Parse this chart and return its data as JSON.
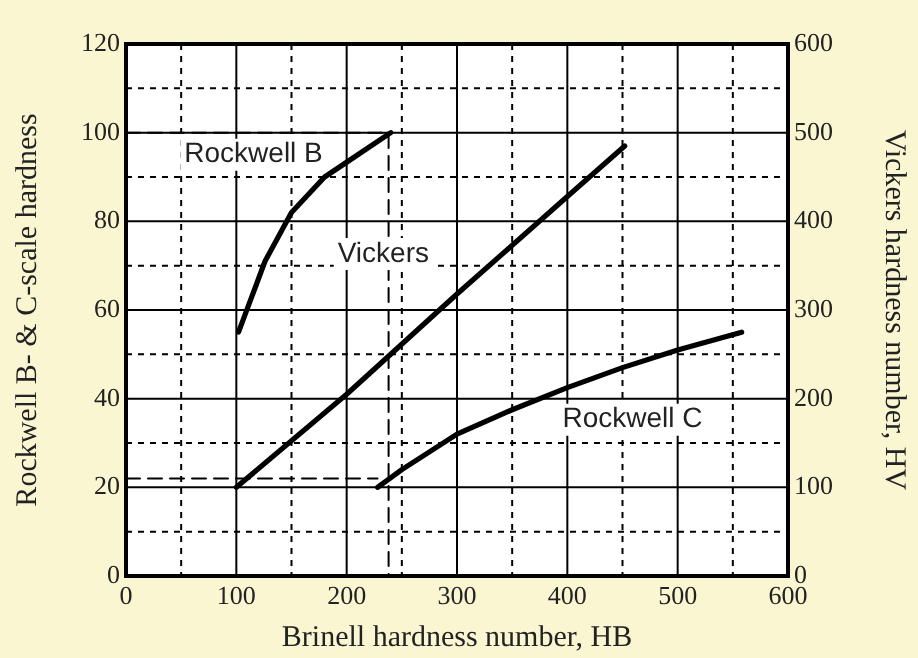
{
  "chart_data": {
    "type": "line",
    "xlabel": "Brinell hardness number, HB",
    "ylabel": "Rockwell B- & C-scale hardness",
    "y2label": "Vickers hardness number, HV",
    "xlim": [
      0,
      600
    ],
    "xticks": [
      0,
      {
        "value": 50,
        "label": null
      },
      100,
      {
        "value": 150,
        "label": null
      },
      200,
      {
        "value": 250,
        "label": null
      },
      300,
      {
        "value": 350,
        "label": null
      },
      400,
      {
        "value": 450,
        "label": null
      },
      500,
      {
        "value": 550,
        "label": null
      },
      600
    ],
    "ylim": [
      0,
      120
    ],
    "yticks": [
      0,
      {
        "value": 10,
        "label": null
      },
      20,
      {
        "value": 30,
        "label": null
      },
      40,
      {
        "value": 50,
        "label": null
      },
      60,
      {
        "value": 70,
        "label": null
      },
      80,
      {
        "value": 90,
        "label": null
      },
      100,
      {
        "value": 110,
        "label": null
      },
      120
    ],
    "y2lim": [
      0,
      600
    ],
    "y2ticks": [
      0,
      100,
      200,
      300,
      400,
      500,
      600
    ],
    "grid": true,
    "legend": false,
    "marker": "none",
    "line_style": "solid",
    "series": [
      {
        "name": "Rockwell B",
        "color": "#000000",
        "x": [
          102,
          126,
          150,
          180,
          204,
          240
        ],
        "values": [
          55,
          71,
          82,
          90,
          94,
          100
        ]
      },
      {
        "name": "Vickers",
        "color": "#000000",
        "axis": "y2",
        "x": [
          100,
          200,
          300,
          400,
          452
        ],
        "values": [
          100,
          205,
          318,
          428,
          485
        ]
      },
      {
        "name": "Rockwell C",
        "color": "#000000",
        "x": [
          228,
          250,
          300,
          350,
          400,
          450,
          500,
          558
        ],
        "values": [
          20,
          24,
          32,
          37.5,
          42.5,
          47,
          51,
          55
        ]
      },
      {
        "color": "#000000",
        "line_style": "dashed",
        "x": [
          0,
          238,
          238
        ],
        "values": [
          100,
          100,
          0
        ]
      },
      {
        "color": "#000000",
        "line_style": "dashed",
        "x": [
          0,
          228
        ],
        "values": [
          22,
          22
        ]
      }
    ]
  }
}
